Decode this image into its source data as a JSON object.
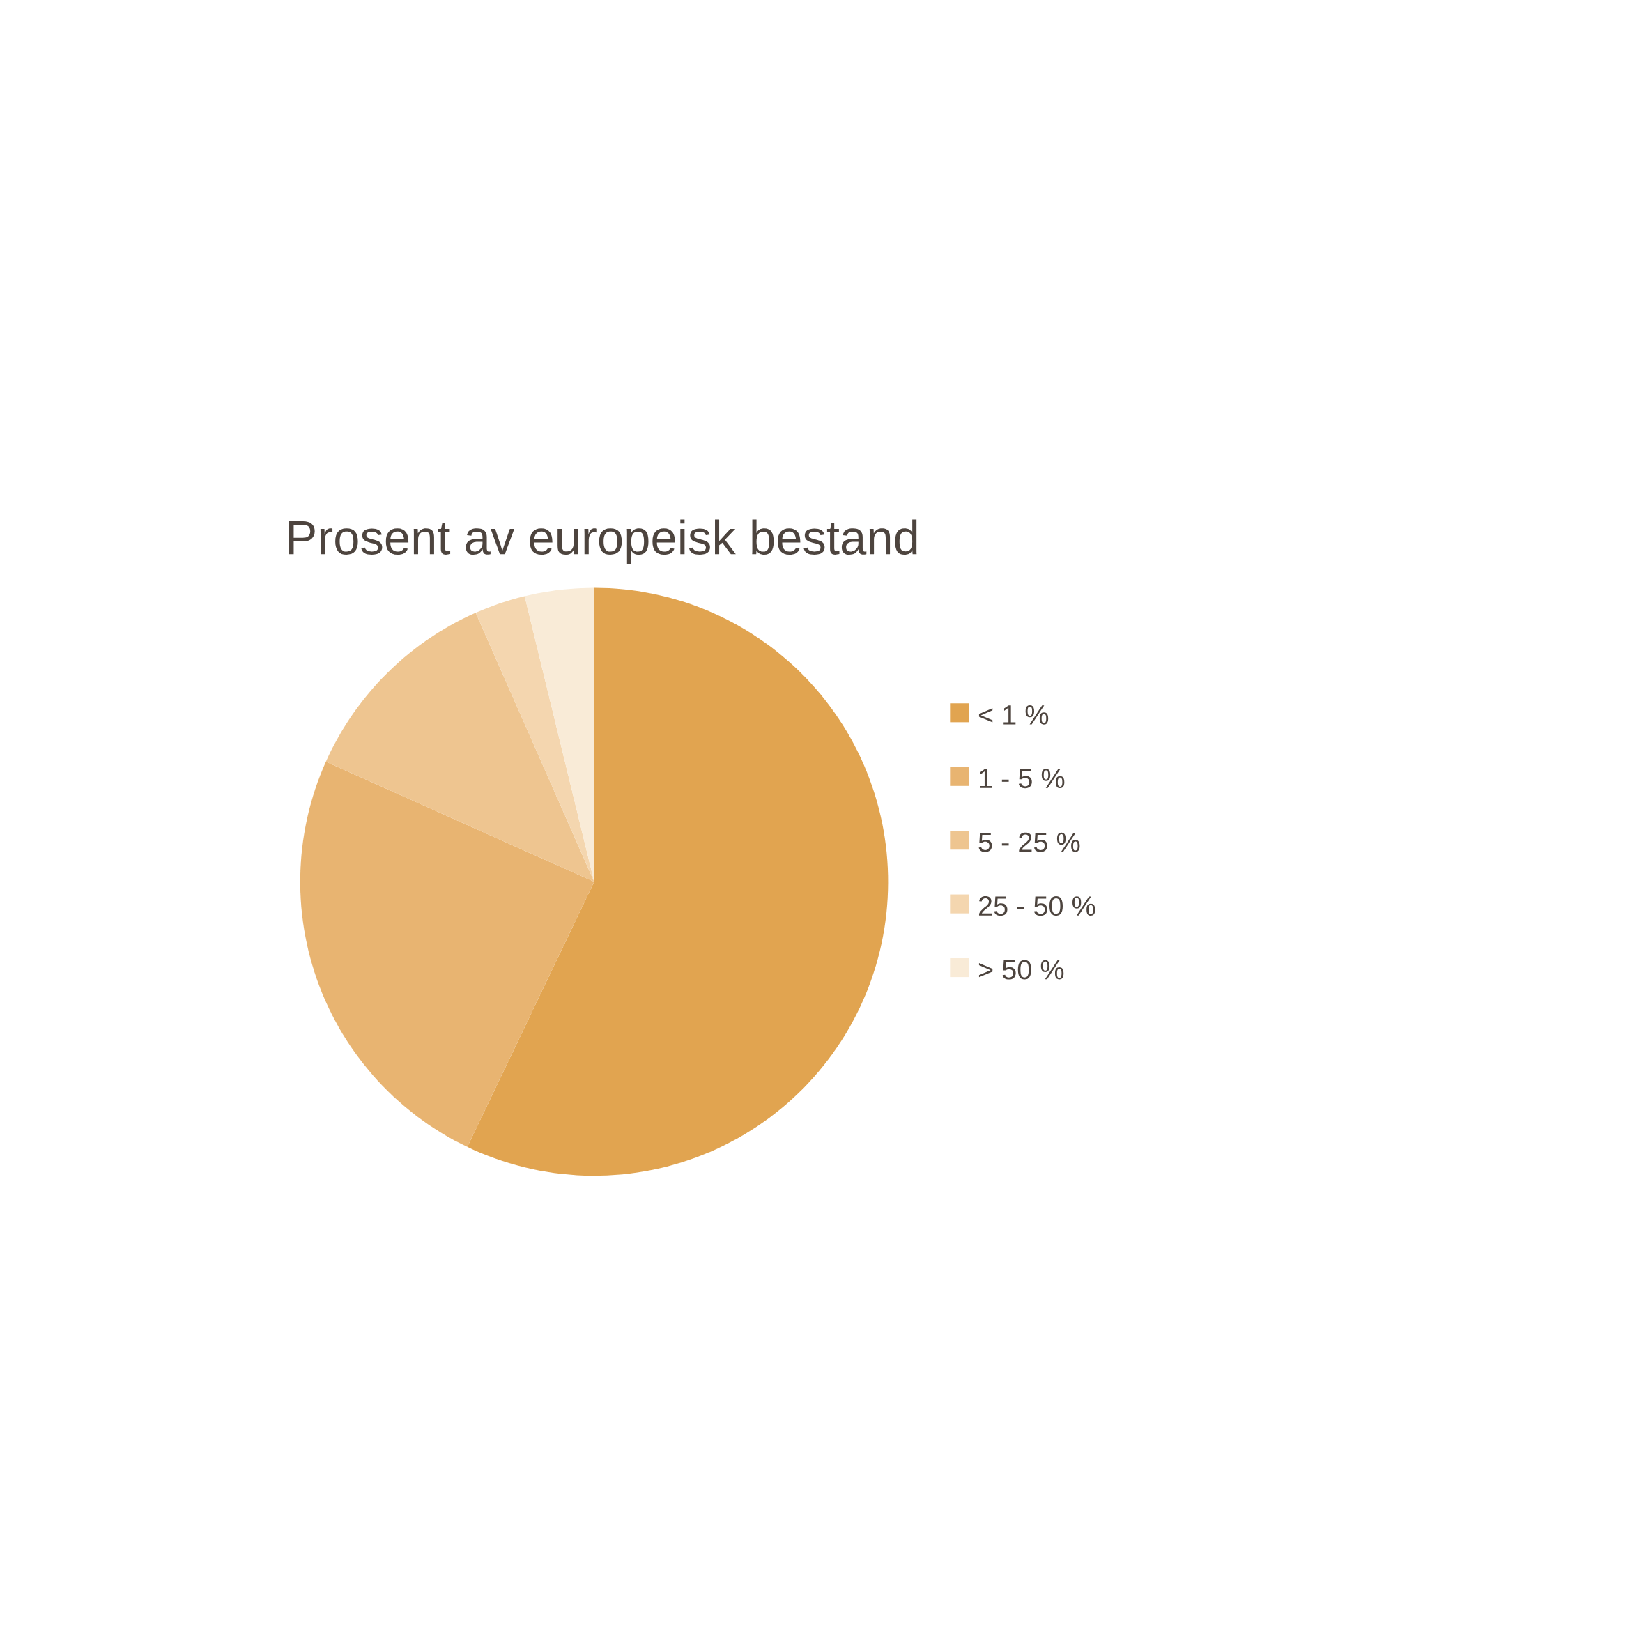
{
  "chart_data": {
    "type": "pie",
    "title": "Prosent av europeisk bestand",
    "categories": [
      "< 1 %",
      "1 - 5 %",
      "5 - 25 %",
      "25 - 50 %",
      "> 50 %"
    ],
    "values": [
      57.1,
      24.6,
      11.7,
      2.8,
      3.8
    ],
    "colors": [
      "#e1a450",
      "#e8b471",
      "#eec590",
      "#f4d6af",
      "#f9ebd7"
    ],
    "legend": "right"
  }
}
